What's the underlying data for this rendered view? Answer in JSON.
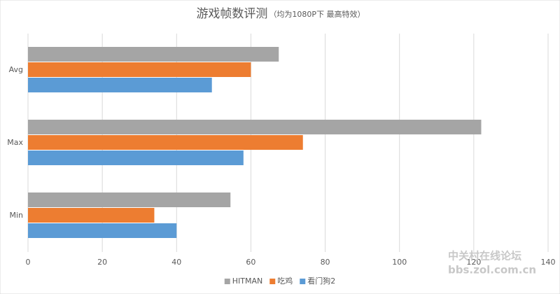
{
  "chart_data": {
    "type": "hbar",
    "title": "游戏帧数评测",
    "subtitle": "（均为1080P下 最高特效）",
    "categories": [
      "Avg",
      "Max",
      "Min"
    ],
    "series": [
      {
        "name": "HITMAN",
        "color": "#a5a5a5",
        "values": [
          67.5,
          122,
          54.5
        ]
      },
      {
        "name": "吃鸡",
        "color": "#ed7d31",
        "values": [
          60,
          74,
          34
        ]
      },
      {
        "name": "看门狗2",
        "color": "#5b9bd5",
        "values": [
          49.5,
          58,
          40
        ]
      }
    ],
    "xlim": [
      0,
      140
    ],
    "xticks": [
      0,
      20,
      40,
      60,
      80,
      100,
      120,
      140
    ],
    "grid": true,
    "legend": "bottom",
    "watermark": [
      "中关村在线论坛",
      "bbs.zol.com.cn"
    ]
  }
}
